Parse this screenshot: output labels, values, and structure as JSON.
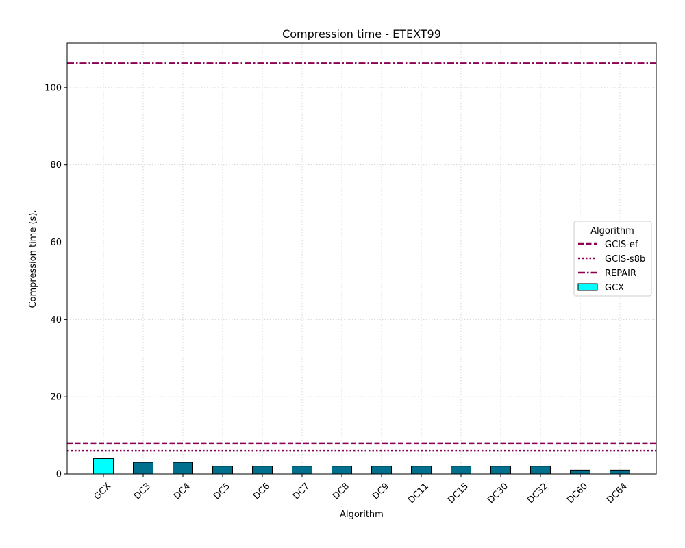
{
  "chart_data": {
    "type": "bar",
    "title": "Compression time -  ETEXT99",
    "xlabel": "Algorithm",
    "ylabel": "Compression time (s).",
    "categories": [
      "GCX",
      "DC3",
      "DC4",
      "DC5",
      "DC6",
      "DC7",
      "DC8",
      "DC9",
      "DC11",
      "DC15",
      "DC30",
      "DC32",
      "DC60",
      "DC64"
    ],
    "values": [
      4,
      3,
      3,
      2,
      2,
      2,
      2,
      2,
      2,
      2,
      2,
      2,
      1,
      1
    ],
    "ylim": [
      0,
      111.5
    ],
    "yticks": [
      0,
      20,
      40,
      60,
      80,
      100
    ],
    "grid": true,
    "bar_colors": {
      "highlight": "#00ffff",
      "default": "#00708f",
      "edge": "#000000"
    },
    "reference_lines": [
      {
        "name": "GCIS-ef",
        "value": 8,
        "style": "dashed",
        "color": "#8b0052"
      },
      {
        "name": "GCIS-s8b",
        "value": 6,
        "style": "dotted",
        "color": "#8b0052"
      },
      {
        "name": "REPAIR",
        "value": 106.3,
        "style": "dashdot",
        "color": "#8b0052"
      }
    ],
    "legend": {
      "title": "Algorithm",
      "placement": "center-right",
      "entries": [
        "GCIS-ef",
        "GCIS-s8b",
        "REPAIR",
        "GCX"
      ]
    }
  }
}
